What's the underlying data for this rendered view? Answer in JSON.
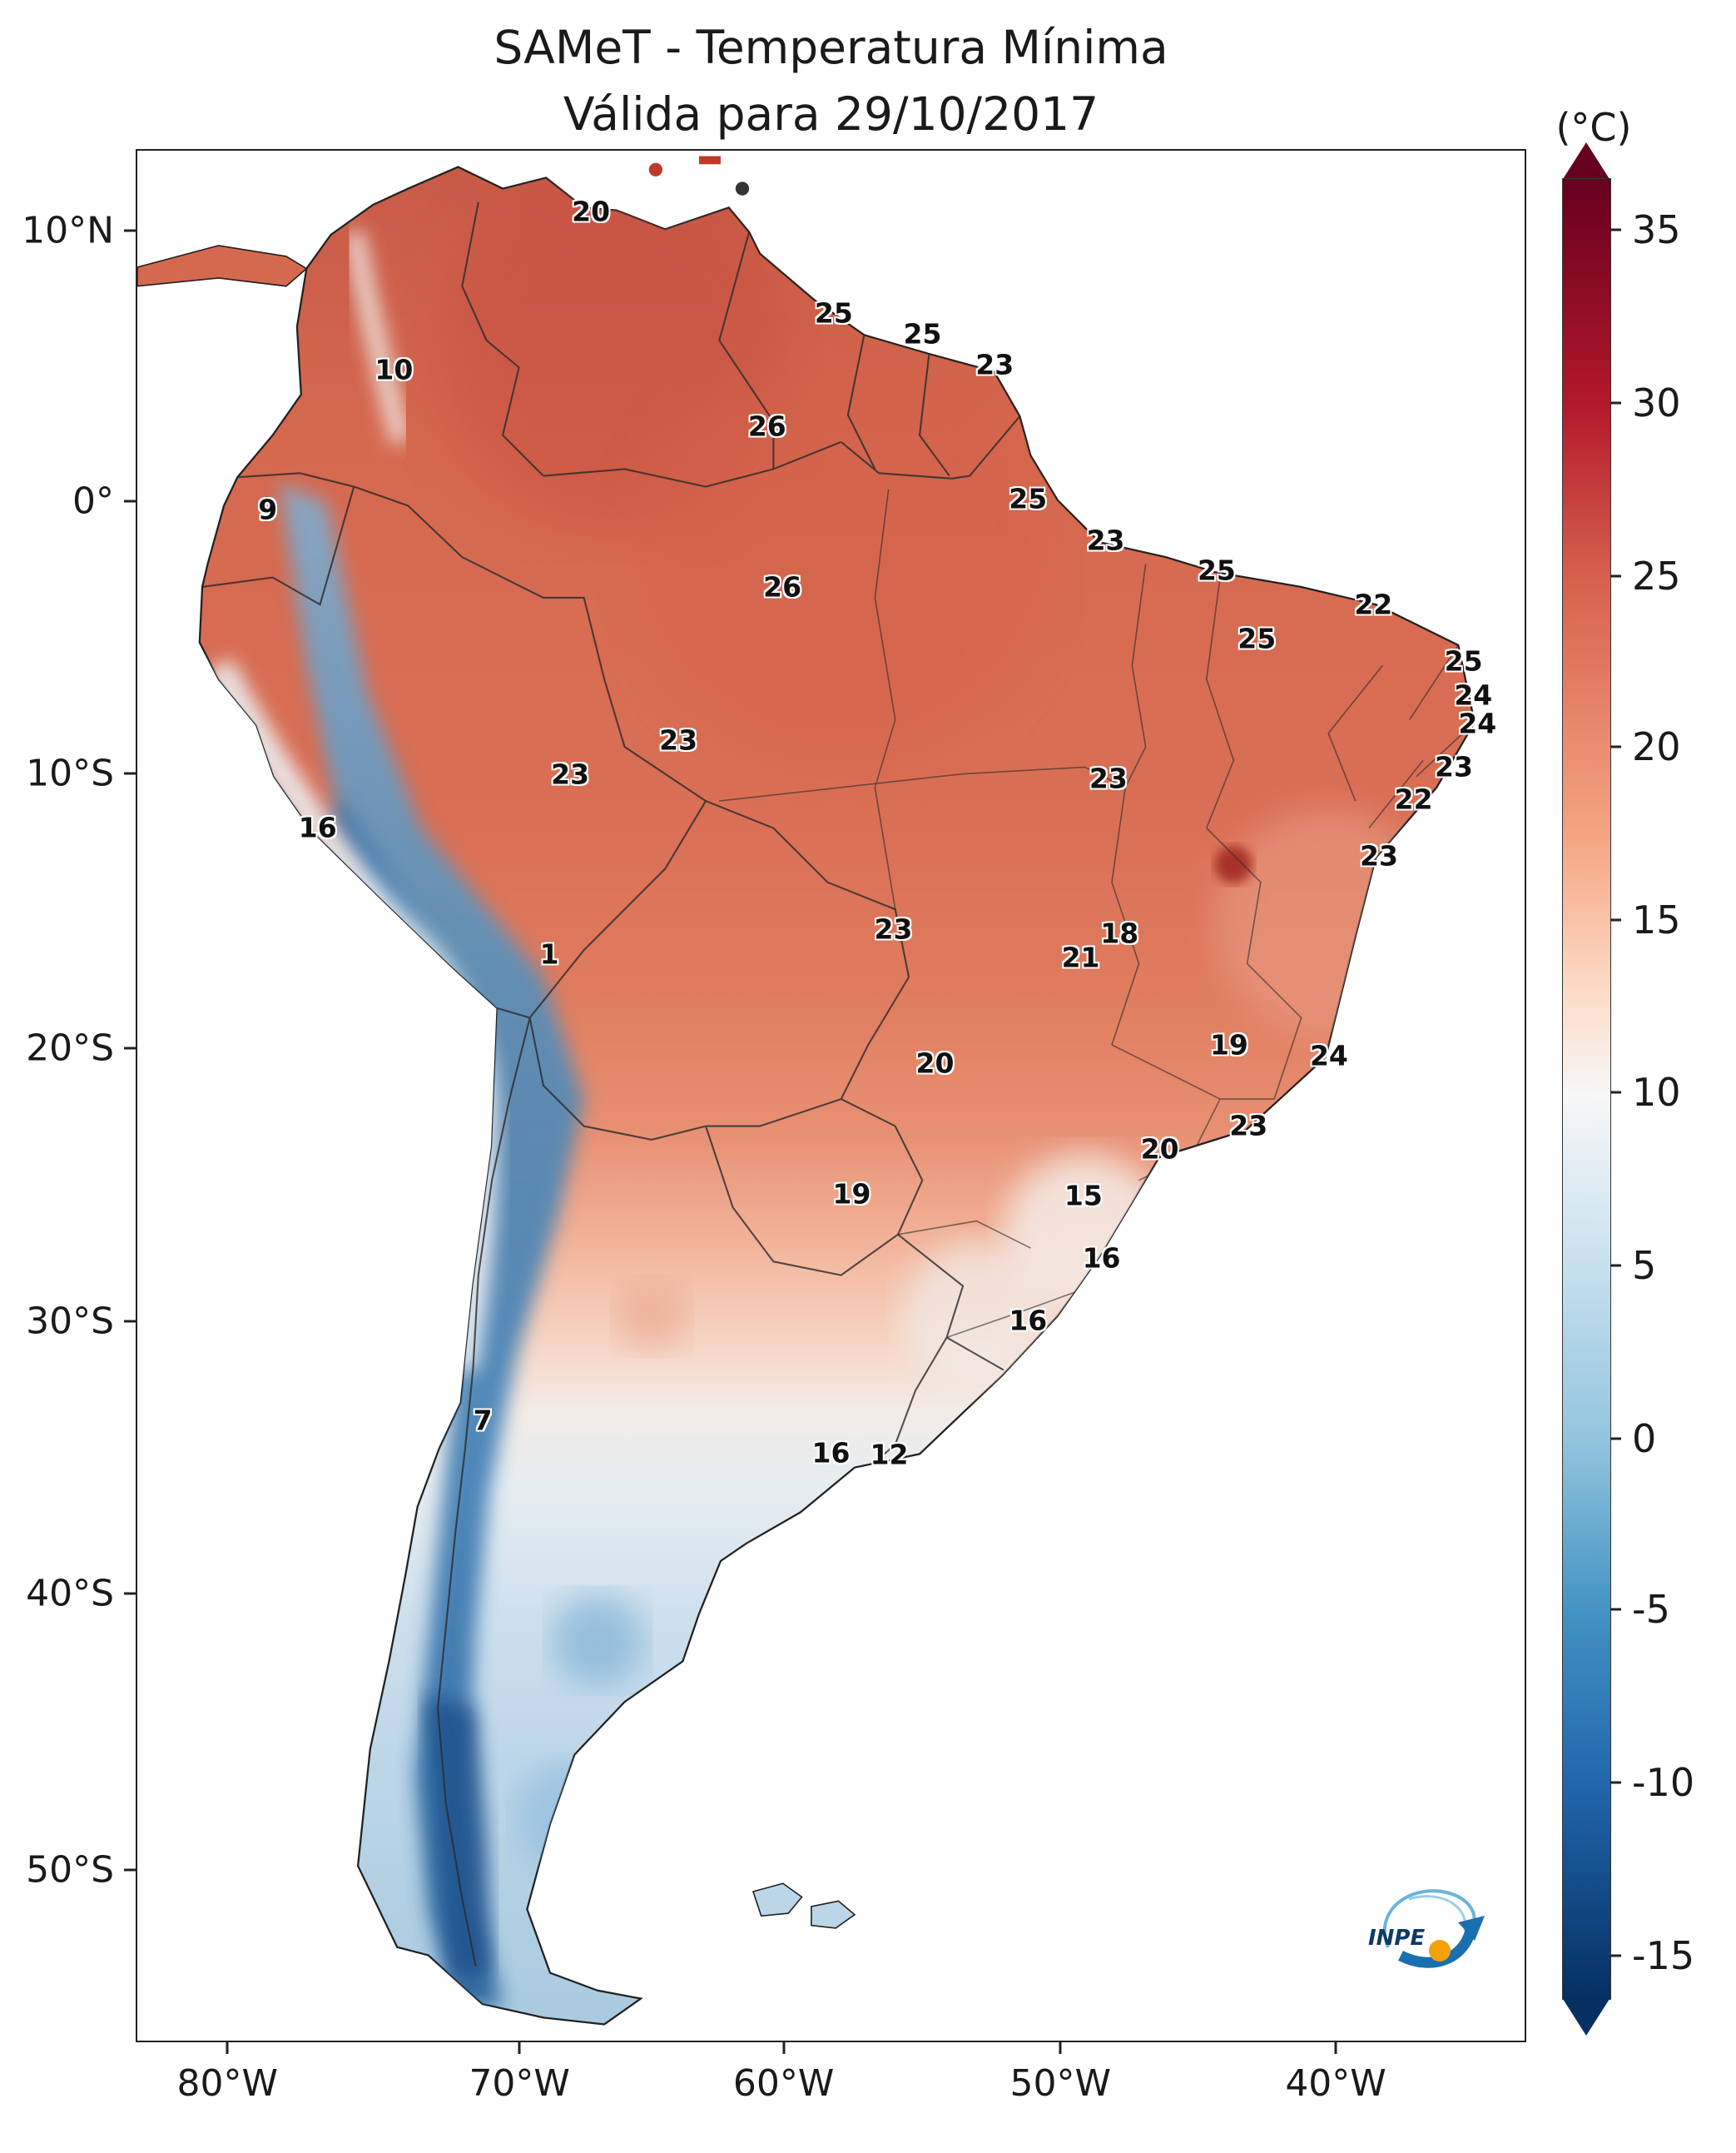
{
  "title": {
    "line1": "SAMeT - Temperatura Mínima",
    "line2": "Válida para 29/10/2017"
  },
  "axes": {
    "y_ticks": [
      {
        "label": "10°N",
        "pos": 4.3
      },
      {
        "label": "0°",
        "pos": 18.6
      },
      {
        "label": "10°S",
        "pos": 33.0
      },
      {
        "label": "20°S",
        "pos": 47.5
      },
      {
        "label": "30°S",
        "pos": 61.9
      },
      {
        "label": "40°S",
        "pos": 76.3
      },
      {
        "label": "50°S",
        "pos": 90.9
      }
    ],
    "x_ticks": [
      {
        "label": "80°W",
        "pos": 6.6
      },
      {
        "label": "70°W",
        "pos": 27.6
      },
      {
        "label": "60°W",
        "pos": 46.6
      },
      {
        "label": "50°W",
        "pos": 66.5
      },
      {
        "label": "40°W",
        "pos": 86.3
      }
    ]
  },
  "colorbar": {
    "unit_label": "(°C)",
    "ticks": [
      {
        "label": "35",
        "pos": 2.8
      },
      {
        "label": "30",
        "pos": 12.3
      },
      {
        "label": "25",
        "pos": 21.8
      },
      {
        "label": "20",
        "pos": 31.2
      },
      {
        "label": "15",
        "pos": 40.7
      },
      {
        "label": "10",
        "pos": 50.2
      },
      {
        "label": "5",
        "pos": 59.7
      },
      {
        "label": "0",
        "pos": 69.2
      },
      {
        "label": "-5",
        "pos": 78.6
      },
      {
        "label": "-10",
        "pos": 88.1
      },
      {
        "label": "-15",
        "pos": 97.6
      }
    ],
    "gradient": [
      {
        "c": "#67001f",
        "p": 0
      },
      {
        "c": "#b2182b",
        "p": 12.3
      },
      {
        "c": "#d6604d",
        "p": 21.8
      },
      {
        "c": "#f4a582",
        "p": 36.1
      },
      {
        "c": "#fddbc7",
        "p": 44.6
      },
      {
        "c": "#f7f7f7",
        "p": 50.3
      },
      {
        "c": "#d1e5f0",
        "p": 57.9
      },
      {
        "c": "#92c5de",
        "p": 69.3
      },
      {
        "c": "#4393c3",
        "p": 78.7
      },
      {
        "c": "#2166ac",
        "p": 88.2
      },
      {
        "c": "#053061",
        "p": 100
      }
    ]
  },
  "chart_data": {
    "type": "heatmap",
    "title": "SAMeT - Temperatura Mínima",
    "subtitle": "Válida para 29/10/2017",
    "unit": "°C",
    "region": "South America",
    "colorbar_range": [
      -15,
      35
    ],
    "colorbar_ticks": [
      35,
      30,
      25,
      20,
      15,
      10,
      5,
      0,
      -5,
      -10,
      -15
    ],
    "palette_name": "red-white-blue (warm high, cold low)",
    "station_values": [
      {
        "value": 20,
        "x": 32.7,
        "y": 3.2
      },
      {
        "value": 25,
        "x": 50.2,
        "y": 8.6
      },
      {
        "value": 25,
        "x": 56.6,
        "y": 9.7
      },
      {
        "value": 23,
        "x": 61.8,
        "y": 11.3
      },
      {
        "value": 10,
        "x": 18.5,
        "y": 11.6
      },
      {
        "value": 26,
        "x": 45.4,
        "y": 14.6
      },
      {
        "value": 9,
        "x": 9.4,
        "y": 19.0
      },
      {
        "value": 25,
        "x": 64.2,
        "y": 18.4
      },
      {
        "value": 23,
        "x": 69.8,
        "y": 20.6
      },
      {
        "value": 25,
        "x": 77.8,
        "y": 22.2
      },
      {
        "value": 26,
        "x": 46.5,
        "y": 23.1
      },
      {
        "value": 22,
        "x": 89.1,
        "y": 24.0
      },
      {
        "value": 25,
        "x": 80.7,
        "y": 25.8
      },
      {
        "value": 25,
        "x": 95.6,
        "y": 27.0
      },
      {
        "value": 24,
        "x": 96.3,
        "y": 28.8
      },
      {
        "value": 24,
        "x": 96.6,
        "y": 30.3
      },
      {
        "value": 23,
        "x": 39.0,
        "y": 31.2
      },
      {
        "value": 23,
        "x": 94.9,
        "y": 32.6
      },
      {
        "value": 23,
        "x": 31.2,
        "y": 33.0
      },
      {
        "value": 23,
        "x": 70.0,
        "y": 33.2
      },
      {
        "value": 22,
        "x": 92.0,
        "y": 34.3
      },
      {
        "value": 16,
        "x": 13.0,
        "y": 35.8
      },
      {
        "value": 23,
        "x": 89.5,
        "y": 37.3
      },
      {
        "value": 23,
        "x": 54.5,
        "y": 41.2
      },
      {
        "value": 18,
        "x": 70.8,
        "y": 41.4
      },
      {
        "value": 21,
        "x": 68.0,
        "y": 42.7
      },
      {
        "value": 1,
        "x": 29.7,
        "y": 42.5
      },
      {
        "value": 19,
        "x": 78.7,
        "y": 47.3
      },
      {
        "value": 24,
        "x": 85.9,
        "y": 47.9
      },
      {
        "value": 20,
        "x": 57.5,
        "y": 48.3
      },
      {
        "value": 23,
        "x": 80.1,
        "y": 51.6
      },
      {
        "value": 20,
        "x": 73.7,
        "y": 52.8
      },
      {
        "value": 19,
        "x": 51.5,
        "y": 55.2
      },
      {
        "value": 15,
        "x": 68.2,
        "y": 55.3
      },
      {
        "value": 16,
        "x": 69.5,
        "y": 58.6
      },
      {
        "value": 16,
        "x": 64.2,
        "y": 61.9
      },
      {
        "value": 7,
        "x": 24.9,
        "y": 67.2
      },
      {
        "value": 16,
        "x": 50.0,
        "y": 68.9
      },
      {
        "value": 12,
        "x": 54.2,
        "y": 69.0
      }
    ]
  },
  "logo": {
    "text": "INPE"
  }
}
